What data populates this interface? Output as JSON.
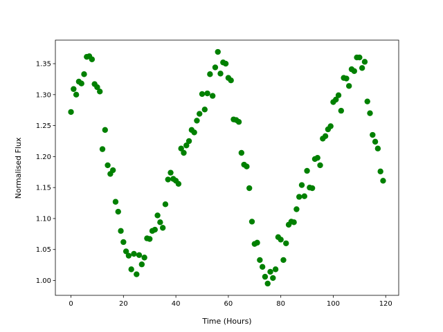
{
  "chart_data": {
    "type": "scatter",
    "xlabel": "Time (Hours)",
    "ylabel": "Normalised Flux",
    "color": "#008000",
    "x": [
      0,
      1,
      2,
      3,
      4,
      5,
      6,
      7,
      8,
      9,
      10,
      11,
      12,
      13,
      14,
      15,
      16,
      17,
      18,
      19,
      20,
      21,
      22,
      23,
      24,
      25,
      26,
      27,
      28,
      29,
      30,
      31,
      32,
      33,
      34,
      35,
      36,
      37,
      38,
      39,
      40,
      41,
      42,
      43,
      44,
      45,
      46,
      47,
      48,
      49,
      50,
      51,
      52,
      53,
      54,
      55,
      56,
      57,
      58,
      59,
      60,
      61,
      62,
      63,
      64,
      65,
      66,
      67,
      68,
      69,
      70,
      71,
      72,
      73,
      74,
      75,
      76,
      77,
      78,
      79,
      80,
      81,
      82,
      83,
      84,
      85,
      86,
      87,
      88,
      89,
      90,
      91,
      92,
      93,
      94,
      95,
      96,
      97,
      98,
      99,
      100,
      101,
      102,
      103,
      104,
      105,
      106,
      107,
      108,
      109,
      110,
      111,
      112,
      113,
      114,
      115,
      116,
      117,
      118,
      119
    ],
    "values": [
      1.272,
      1.309,
      1.3,
      1.321,
      1.318,
      1.333,
      1.361,
      1.362,
      1.357,
      1.317,
      1.312,
      1.305,
      1.212,
      1.243,
      1.186,
      1.172,
      1.178,
      1.127,
      1.111,
      1.08,
      1.062,
      1.047,
      1.04,
      1.018,
      1.043,
      1.01,
      1.041,
      1.026,
      1.037,
      1.068,
      1.067,
      1.08,
      1.082,
      1.105,
      1.094,
      1.085,
      1.123,
      1.163,
      1.174,
      1.164,
      1.161,
      1.156,
      1.213,
      1.206,
      1.218,
      1.225,
      1.243,
      1.239,
      1.258,
      1.269,
      1.301,
      1.276,
      1.302,
      1.333,
      1.298,
      1.344,
      1.369,
      1.334,
      1.352,
      1.35,
      1.327,
      1.323,
      1.26,
      1.259,
      1.256,
      1.206,
      1.187,
      1.184,
      1.149,
      1.095,
      1.059,
      1.061,
      1.033,
      1.022,
      1.006,
      0.995,
      1.014,
      1.004,
      1.018,
      1.07,
      1.066,
      1.033,
      1.06,
      1.09,
      1.095,
      1.094,
      1.115,
      1.135,
      1.154,
      1.136,
      1.177,
      1.15,
      1.149,
      1.196,
      1.198,
      1.186,
      1.229,
      1.233,
      1.244,
      1.249,
      1.288,
      1.292,
      1.299,
      1.274,
      1.327,
      1.326,
      1.314,
      1.341,
      1.338,
      1.36,
      1.36,
      1.343,
      1.353,
      1.289,
      1.27,
      1.235,
      1.224,
      1.213,
      1.176,
      1.161
    ],
    "xlim": [
      -5.95,
      124.95
    ],
    "ylim": [
      0.976,
      1.388
    ],
    "xticks": [
      0,
      20,
      40,
      60,
      80,
      100,
      120
    ],
    "yticks": [
      {
        "value": 1.0,
        "label": "1.00"
      },
      {
        "value": 1.05,
        "label": "1.05"
      },
      {
        "value": 1.1,
        "label": "1.10"
      },
      {
        "value": 1.15,
        "label": "1.15"
      },
      {
        "value": 1.2,
        "label": "1.20"
      },
      {
        "value": 1.25,
        "label": "1.25"
      },
      {
        "value": 1.3,
        "label": "1.30"
      },
      {
        "value": 1.35,
        "label": "1.35"
      }
    ]
  }
}
